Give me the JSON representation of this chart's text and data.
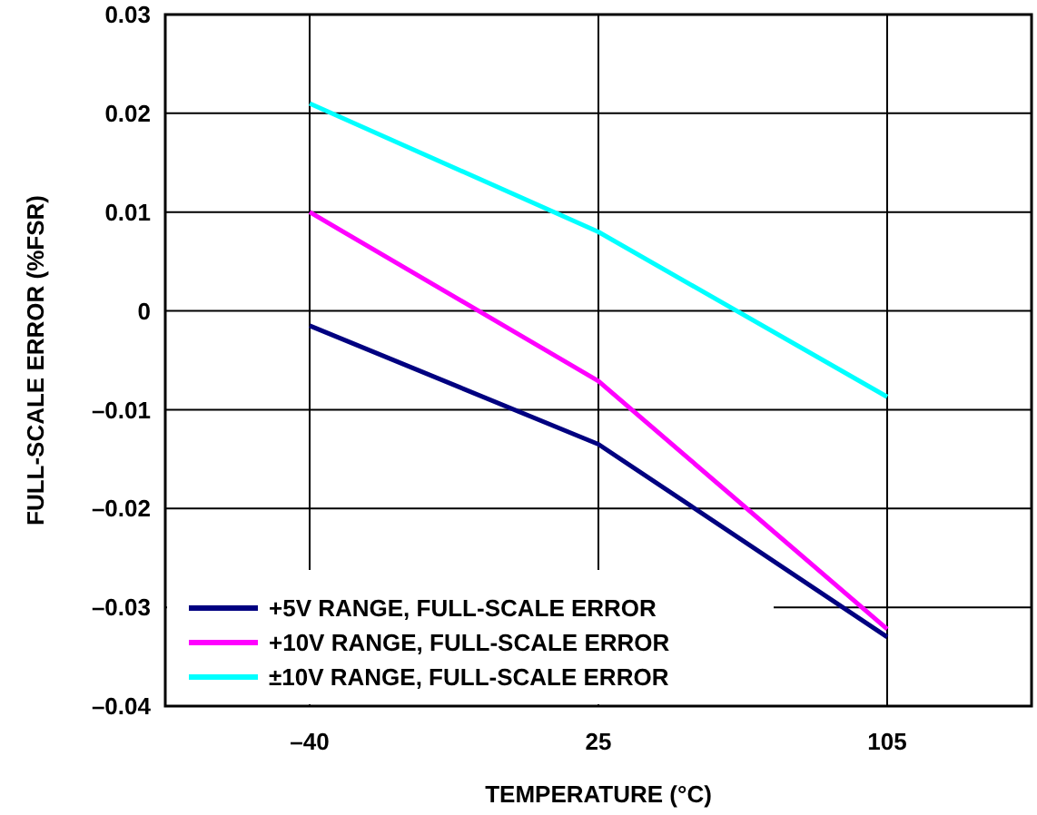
{
  "chart_data": {
    "type": "line",
    "xlabel": "TEMPERATURE (°C)",
    "ylabel": "FULL-SCALE ERROR (%FSR)",
    "categories": [
      "–40",
      "25",
      "105"
    ],
    "series": [
      {
        "name": "+5V RANGE, FULL-SCALE ERROR",
        "color": "#000080",
        "values": [
          -0.0015,
          -0.0135,
          -0.033
        ]
      },
      {
        "name": "+10V RANGE, FULL-SCALE ERROR",
        "color": "#ff00ff",
        "values": [
          0.01,
          -0.0071,
          -0.0322
        ]
      },
      {
        "name": "±10V RANGE, FULL-SCALE ERROR",
        "color": "#00ffff",
        "values": [
          0.021,
          0.008,
          -0.0087
        ]
      }
    ],
    "ylim": [
      -0.04,
      0.03
    ],
    "yticks": [
      {
        "value": -0.04,
        "label": "–0.04"
      },
      {
        "value": -0.03,
        "label": "–0.03"
      },
      {
        "value": -0.02,
        "label": "–0.02"
      },
      {
        "value": -0.01,
        "label": "–0.01"
      },
      0,
      0.01,
      0.02,
      0.03
    ],
    "grid": true,
    "legend": "bottom left",
    "marker": "none",
    "line_style": "solid"
  }
}
